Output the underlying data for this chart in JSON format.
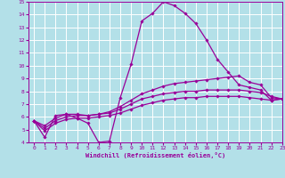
{
  "xlabel": "Windchill (Refroidissement éolien,°C)",
  "xlim": [
    -0.5,
    23
  ],
  "ylim": [
    4,
    15
  ],
  "xticks": [
    0,
    1,
    2,
    3,
    4,
    5,
    6,
    7,
    8,
    9,
    10,
    11,
    12,
    13,
    14,
    15,
    16,
    17,
    18,
    19,
    20,
    21,
    22,
    23
  ],
  "yticks": [
    4,
    5,
    6,
    7,
    8,
    9,
    10,
    11,
    12,
    13,
    14,
    15
  ],
  "background_color": "#b3e0e8",
  "grid_color": "#ffffff",
  "line_color": "#990099",
  "series": [
    {
      "x": [
        0,
        1,
        2,
        3,
        4,
        5,
        6,
        7,
        8,
        9,
        10,
        11,
        12,
        13,
        14,
        15,
        16,
        17,
        18,
        19,
        20,
        21,
        22,
        23
      ],
      "y": [
        5.7,
        4.4,
        6.1,
        6.2,
        5.9,
        5.5,
        4.0,
        4.1,
        7.5,
        10.1,
        13.5,
        14.1,
        15.0,
        14.7,
        14.1,
        13.3,
        12.0,
        10.5,
        9.5,
        8.5,
        8.3,
        8.1,
        7.3,
        7.4
      ]
    },
    {
      "x": [
        0,
        1,
        2,
        3,
        4,
        5,
        6,
        7,
        8,
        9,
        10,
        11,
        12,
        13,
        14,
        15,
        16,
        17,
        18,
        19,
        20,
        21,
        22,
        23
      ],
      "y": [
        5.7,
        5.3,
        5.9,
        6.2,
        6.2,
        6.1,
        6.2,
        6.4,
        6.8,
        7.3,
        7.8,
        8.1,
        8.4,
        8.6,
        8.7,
        8.8,
        8.9,
        9.0,
        9.1,
        9.2,
        8.7,
        8.5,
        7.5,
        7.4
      ]
    },
    {
      "x": [
        0,
        1,
        2,
        3,
        4,
        5,
        6,
        7,
        8,
        9,
        10,
        11,
        12,
        13,
        14,
        15,
        16,
        17,
        18,
        19,
        20,
        21,
        22,
        23
      ],
      "y": [
        5.7,
        5.1,
        5.7,
        6.0,
        6.1,
        6.1,
        6.2,
        6.3,
        6.6,
        7.0,
        7.4,
        7.6,
        7.8,
        7.9,
        8.0,
        8.0,
        8.1,
        8.1,
        8.1,
        8.1,
        8.0,
        7.9,
        7.6,
        7.4
      ]
    },
    {
      "x": [
        0,
        1,
        2,
        3,
        4,
        5,
        6,
        7,
        8,
        9,
        10,
        11,
        12,
        13,
        14,
        15,
        16,
        17,
        18,
        19,
        20,
        21,
        22,
        23
      ],
      "y": [
        5.7,
        4.9,
        5.5,
        5.8,
        5.9,
        5.9,
        6.0,
        6.1,
        6.3,
        6.6,
        6.9,
        7.1,
        7.3,
        7.4,
        7.5,
        7.5,
        7.6,
        7.6,
        7.6,
        7.6,
        7.5,
        7.4,
        7.3,
        7.4
      ]
    }
  ]
}
